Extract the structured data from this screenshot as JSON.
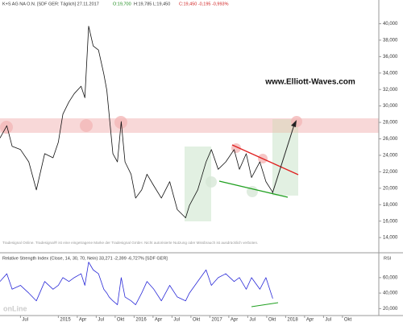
{
  "chart_data": [
    {
      "type": "line",
      "title": "K+S AG NA O.N. [SDF GER: Täglich] 27.11.2017",
      "annotations": [
        "O:19,700",
        "H:19,785 L:19,450",
        "C:19,450 -0,195 -0,993%",
        "www.Elliott-Waves.com",
        "Tradesignal Online. Tradesignal® ist eine eingetragene Marke der Tradesignal GmbH. Nicht autorisierte Nutzung oder Missbrauch ist ausdrücklich verboten."
      ],
      "color": "#111111",
      "x": [
        2014.23,
        2014.32,
        2014.39,
        2014.5,
        2014.61,
        2014.71,
        2014.82,
        2014.93,
        2015.0,
        2015.06,
        2015.14,
        2015.21,
        2015.3,
        2015.35,
        2015.4,
        2015.46,
        2015.53,
        2015.6,
        2015.64,
        2015.67,
        2015.72,
        2015.78,
        2015.83,
        2015.88,
        2015.96,
        2016.02,
        2016.1,
        2016.17,
        2016.26,
        2016.36,
        2016.47,
        2016.57,
        2016.68,
        2016.73,
        2016.84,
        2016.95,
        2017.02,
        2017.11,
        2017.21,
        2017.32,
        2017.39,
        2017.48,
        2017.55,
        2017.66,
        2017.74,
        2017.83
      ],
      "values": [
        26.1,
        27.6,
        25.1,
        24.7,
        23.2,
        19.8,
        24.2,
        23.7,
        25.6,
        29.0,
        30.5,
        31.5,
        32.4,
        31.0,
        39.7,
        37.3,
        36.8,
        33.9,
        31.9,
        29.0,
        24.2,
        23.2,
        28.1,
        23.2,
        21.7,
        18.8,
        19.8,
        21.7,
        20.3,
        18.8,
        20.8,
        17.4,
        16.4,
        17.9,
        19.8,
        23.2,
        24.7,
        22.3,
        23.2,
        24.7,
        22.3,
        24.2,
        21.3,
        23.2,
        20.8,
        19.5
      ],
      "xlim": [
        2014.23,
        2019.23
      ],
      "ylim": [
        12.25,
        42.1
      ],
      "yticks": [
        {
          "value": 14,
          "label": "14,000"
        },
        {
          "value": 16,
          "label": "16,000"
        },
        {
          "value": 18,
          "label": "18,000"
        },
        {
          "value": 20,
          "label": "20,000"
        },
        {
          "value": 22,
          "label": "22,000"
        },
        {
          "value": 24,
          "label": "24,000"
        },
        {
          "value": 26,
          "label": "26,000"
        },
        {
          "value": 28,
          "label": "28,000"
        },
        {
          "value": 30,
          "label": "30,000"
        },
        {
          "value": 32,
          "label": "32,000"
        },
        {
          "value": 34,
          "label": "34,000"
        },
        {
          "value": 36,
          "label": "36,000"
        },
        {
          "value": 38,
          "label": "38,000"
        },
        {
          "value": 40,
          "label": "40,000"
        }
      ]
    },
    {
      "type": "line",
      "title": "Relative Strength Index (Close, 14, 30, 70, Nein) 33,271 -2,399 -6,727% [SDF GER]",
      "axis_label": "RSI",
      "annotations": [
        "onLine"
      ],
      "color": "#2a2ad8",
      "x": [
        2014.23,
        2014.32,
        2014.39,
        2014.5,
        2014.61,
        2014.71,
        2014.82,
        2014.93,
        2015.0,
        2015.06,
        2015.14,
        2015.21,
        2015.3,
        2015.35,
        2015.4,
        2015.46,
        2015.53,
        2015.6,
        2015.64,
        2015.67,
        2015.72,
        2015.78,
        2015.83,
        2015.88,
        2015.96,
        2016.02,
        2016.1,
        2016.17,
        2016.26,
        2016.36,
        2016.47,
        2016.57,
        2016.68,
        2016.73,
        2016.84,
        2016.95,
        2017.02,
        2017.11,
        2017.21,
        2017.32,
        2017.39,
        2017.48,
        2017.55,
        2017.66,
        2017.74,
        2017.83
      ],
      "values": [
        55,
        65,
        45,
        50,
        40,
        30,
        55,
        45,
        50,
        60,
        55,
        60,
        65,
        50,
        80,
        70,
        65,
        45,
        40,
        35,
        30,
        25,
        60,
        35,
        30,
        25,
        40,
        55,
        45,
        30,
        50,
        35,
        30,
        40,
        55,
        70,
        50,
        60,
        65,
        55,
        60,
        45,
        60,
        45,
        60,
        33
      ],
      "xlim": [
        2014.23,
        2019.23
      ],
      "ylim": [
        11,
        90
      ],
      "yticks": [
        {
          "value": 20,
          "label": "20,000"
        },
        {
          "value": 40,
          "label": "40,000"
        },
        {
          "value": 60,
          "label": "60,000"
        }
      ],
      "xticks": [
        {
          "value": 2014.5,
          "label": "Jul"
        },
        {
          "value": 2015,
          "label": "2015"
        },
        {
          "value": 2015.25,
          "label": "Apr"
        },
        {
          "value": 2015.5,
          "label": "Jul"
        },
        {
          "value": 2015.75,
          "label": "Okt"
        },
        {
          "value": 2016,
          "label": "2016"
        },
        {
          "value": 2016.25,
          "label": "Apr"
        },
        {
          "value": 2016.5,
          "label": "Jul"
        },
        {
          "value": 2016.75,
          "label": "Okt"
        },
        {
          "value": 2017,
          "label": "2017"
        },
        {
          "value": 2017.25,
          "label": "Apr"
        },
        {
          "value": 2017.5,
          "label": "Jul"
        },
        {
          "value": 2017.75,
          "label": "Okt"
        },
        {
          "value": 2018,
          "label": "2018"
        },
        {
          "value": 2018.25,
          "label": "Apr"
        },
        {
          "value": 2018.5,
          "label": "Jul"
        },
        {
          "value": 2018.75,
          "label": "Okt"
        }
      ]
    }
  ]
}
